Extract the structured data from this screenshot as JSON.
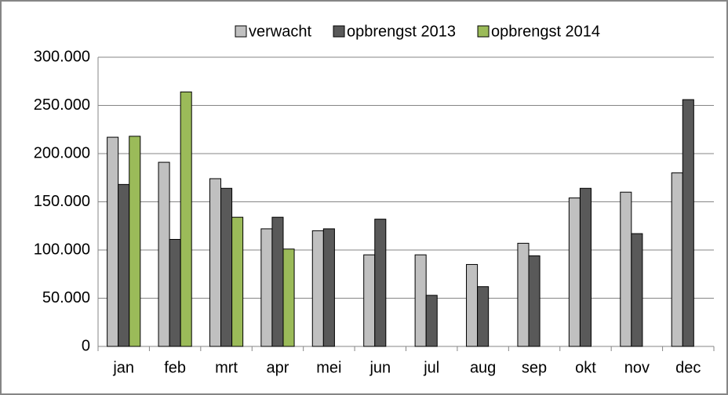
{
  "chart_data": {
    "type": "bar",
    "categories": [
      "jan",
      "feb",
      "mrt",
      "apr",
      "mei",
      "jun",
      "jul",
      "aug",
      "sep",
      "okt",
      "nov",
      "dec"
    ],
    "series": [
      {
        "name": "verwacht",
        "color": "#c0c0c0",
        "values": [
          217000,
          191000,
          174000,
          122000,
          120000,
          95000,
          95000,
          85000,
          107000,
          154000,
          160000,
          180000
        ]
      },
      {
        "name": "opbrengst 2013",
        "color": "#595959",
        "values": [
          168000,
          111000,
          164000,
          134000,
          122000,
          132000,
          53000,
          62000,
          94000,
          164000,
          117000,
          256000
        ]
      },
      {
        "name": "opbrengst 2014",
        "color": "#9bbb59",
        "values": [
          218000,
          264000,
          134000,
          101000,
          null,
          null,
          null,
          null,
          null,
          null,
          null,
          null
        ]
      }
    ],
    "ylim": [
      0,
      300000
    ],
    "yticks": [
      0,
      {
        "value": 50000,
        "label": "50.000"
      },
      {
        "value": 100000,
        "label": "100.000"
      },
      {
        "value": 150000,
        "label": "150.000"
      },
      {
        "value": 200000,
        "label": "200.000"
      },
      {
        "value": 250000,
        "label": "250.000"
      },
      {
        "value": 300000,
        "label": "300.000"
      }
    ],
    "grid": true,
    "legend": "top"
  }
}
